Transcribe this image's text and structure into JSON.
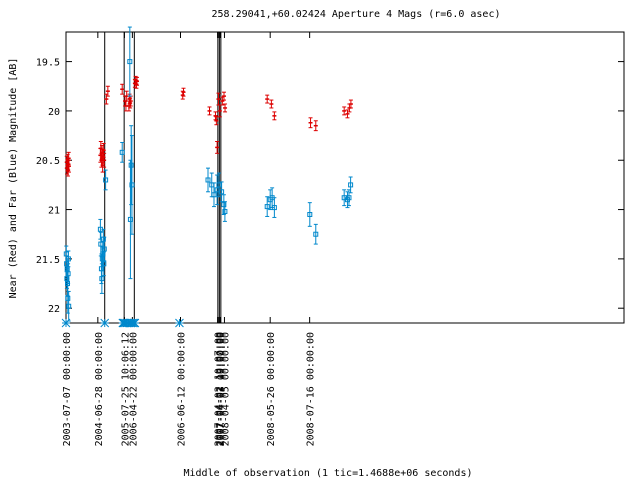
{
  "chart_data": {
    "type": "scatter",
    "title": "258.29041,+60.02424   Aperture 4 Mags (r=6.0 asec)",
    "xlabel": "Middle of observation (1 tic=1.4688e+06 seconds)",
    "ylabel": "Near (Red) and Far (Blue) Magnitude [AB]",
    "ylim": [
      22.15,
      19.2
    ],
    "y_inverted": true,
    "y_ticks": [
      "19.5",
      "20",
      "20.5",
      "21",
      "21.5",
      "22"
    ],
    "x_unit": "tic",
    "xlim": [
      0,
      373.3
    ],
    "x_ticks": [
      {
        "label": "2003-07-07 00:00:00",
        "x": 0.0
      },
      {
        "label": "2004-06-28 00:00:00",
        "x": 21.3
      },
      {
        "label": "2005-07-25 10:06:12",
        "x": 39.1
      },
      {
        "label": "2006-04-22 00:00:00",
        "x": 44.4
      },
      {
        "label": "2006-06-12 00:00:00",
        "x": 76.6
      },
      {
        "label": "2007-04-02 10:07:00",
        "x": 101.4
      },
      {
        "label": "2007-04-02 19:00:00",
        "x": 102.3
      },
      {
        "label": "2007-04-03 00:00:00",
        "x": 103.1
      },
      {
        "label": "2008-04-05 00:00:00",
        "x": 106.0
      },
      {
        "label": "2008-05-26 00:00:00",
        "x": 136.6
      },
      {
        "label": "2008-07-16 00:00:00",
        "x": 163.0
      }
    ],
    "vertical_lines_x": [
      25.9,
      38.9,
      45.7,
      101.6,
      102.6,
      103.6
    ],
    "series": [
      {
        "name": "Near (Red)",
        "color": "#dd0000",
        "marker": "bar-errorbar",
        "points": [
          {
            "x": 0.5,
            "y": 20.52,
            "err": 0.06
          },
          {
            "x": 0.7,
            "y": 20.58,
            "err": 0.06
          },
          {
            "x": 0.9,
            "y": 20.55,
            "err": 0.06
          },
          {
            "x": 1.1,
            "y": 20.5,
            "err": 0.06
          },
          {
            "x": 1.3,
            "y": 20.6,
            "err": 0.06
          },
          {
            "x": 1.5,
            "y": 20.54,
            "err": 0.06
          },
          {
            "x": 1.8,
            "y": 20.48,
            "err": 0.06
          },
          {
            "x": 2.0,
            "y": 20.56,
            "err": 0.06
          },
          {
            "x": 23.0,
            "y": 20.45,
            "err": 0.07
          },
          {
            "x": 23.3,
            "y": 20.38,
            "err": 0.07
          },
          {
            "x": 23.7,
            "y": 20.5,
            "err": 0.07
          },
          {
            "x": 24.1,
            "y": 20.42,
            "err": 0.07
          },
          {
            "x": 24.5,
            "y": 20.55,
            "err": 0.07
          },
          {
            "x": 24.8,
            "y": 20.46,
            "err": 0.07
          },
          {
            "x": 25.2,
            "y": 20.4,
            "err": 0.07
          },
          {
            "x": 25.5,
            "y": 20.5,
            "err": 0.07
          },
          {
            "x": 27.0,
            "y": 19.88,
            "err": 0.05
          },
          {
            "x": 28.0,
            "y": 19.8,
            "err": 0.05
          },
          {
            "x": 37.6,
            "y": 19.78,
            "err": 0.05
          },
          {
            "x": 39.5,
            "y": 19.9,
            "err": 0.05
          },
          {
            "x": 40.1,
            "y": 19.95,
            "err": 0.05
          },
          {
            "x": 40.6,
            "y": 19.85,
            "err": 0.05
          },
          {
            "x": 42.1,
            "y": 19.95,
            "err": 0.05
          },
          {
            "x": 42.5,
            "y": 19.88,
            "err": 0.05
          },
          {
            "x": 42.9,
            "y": 19.92,
            "err": 0.05
          },
          {
            "x": 43.3,
            "y": 19.9,
            "err": 0.05
          },
          {
            "x": 46.1,
            "y": 19.72,
            "err": 0.04
          },
          {
            "x": 46.6,
            "y": 19.69,
            "err": 0.04
          },
          {
            "x": 47.1,
            "y": 19.73,
            "err": 0.04
          },
          {
            "x": 47.5,
            "y": 19.7,
            "err": 0.04
          },
          {
            "x": 78.1,
            "y": 19.84,
            "err": 0.04
          },
          {
            "x": 78.6,
            "y": 19.81,
            "err": 0.04
          },
          {
            "x": 96.0,
            "y": 20.0,
            "err": 0.04
          },
          {
            "x": 100.0,
            "y": 20.05,
            "err": 0.04
          },
          {
            "x": 100.6,
            "y": 20.1,
            "err": 0.04
          },
          {
            "x": 101.1,
            "y": 20.37,
            "err": 0.06
          },
          {
            "x": 102.0,
            "y": 19.88,
            "err": 0.06
          },
          {
            "x": 102.9,
            "y": 20.0,
            "err": 0.06
          },
          {
            "x": 104.6,
            "y": 19.9,
            "err": 0.04
          },
          {
            "x": 105.7,
            "y": 19.85,
            "err": 0.04
          },
          {
            "x": 106.4,
            "y": 19.97,
            "err": 0.04
          },
          {
            "x": 134.6,
            "y": 19.88,
            "err": 0.04
          },
          {
            "x": 137.4,
            "y": 19.93,
            "err": 0.04
          },
          {
            "x": 139.4,
            "y": 20.05,
            "err": 0.04
          },
          {
            "x": 163.6,
            "y": 20.12,
            "err": 0.05
          },
          {
            "x": 167.1,
            "y": 20.15,
            "err": 0.05
          },
          {
            "x": 186.1,
            "y": 20.0,
            "err": 0.04
          },
          {
            "x": 188.3,
            "y": 20.03,
            "err": 0.04
          },
          {
            "x": 189.6,
            "y": 19.97,
            "err": 0.04
          },
          {
            "x": 190.6,
            "y": 19.93,
            "err": 0.04
          }
        ]
      },
      {
        "name": "Far (Blue)",
        "color": "#0088cc",
        "marker": "square-errorbar",
        "points": [
          {
            "x": 0.2,
            "y": 21.45,
            "err": 0.08
          },
          {
            "x": 0.4,
            "y": 21.55,
            "err": 0.08
          },
          {
            "x": 0.6,
            "y": 21.7,
            "err": 0.1
          },
          {
            "x": 0.8,
            "y": 21.6,
            "err": 0.1
          },
          {
            "x": 1.0,
            "y": 21.75,
            "err": 0.12
          },
          {
            "x": 1.2,
            "y": 21.9,
            "err": 0.15
          },
          {
            "x": 1.4,
            "y": 21.65,
            "err": 0.1
          },
          {
            "x": 1.6,
            "y": 21.5,
            "err": 0.08
          },
          {
            "x": 1.8,
            "y": 21.98,
            "err": 0.15
          },
          {
            "x": 23.0,
            "y": 21.2,
            "err": 0.1
          },
          {
            "x": 23.3,
            "y": 21.35,
            "err": 0.12
          },
          {
            "x": 23.7,
            "y": 21.6,
            "err": 0.15
          },
          {
            "x": 24.0,
            "y": 21.7,
            "err": 0.15
          },
          {
            "x": 24.3,
            "y": 21.5,
            "err": 0.12
          },
          {
            "x": 24.7,
            "y": 21.45,
            "err": 0.12
          },
          {
            "x": 25.0,
            "y": 21.3,
            "err": 0.1
          },
          {
            "x": 25.3,
            "y": 21.55,
            "err": 0.12
          },
          {
            "x": 25.6,
            "y": 21.4,
            "err": 0.12
          },
          {
            "x": 26.5,
            "y": 20.7,
            "err": 0.1
          },
          {
            "x": 37.6,
            "y": 20.42,
            "err": 0.1
          },
          {
            "x": 42.7,
            "y": 19.5,
            "err": 0.35
          },
          {
            "x": 43.6,
            "y": 20.55,
            "err": 0.4
          },
          {
            "x": 44.1,
            "y": 20.75,
            "err": 0.5
          },
          {
            "x": 43.1,
            "y": 21.1,
            "err": 0.6
          },
          {
            "x": 95.0,
            "y": 20.7,
            "err": 0.12
          },
          {
            "x": 97.5,
            "y": 20.75,
            "err": 0.12
          },
          {
            "x": 99.0,
            "y": 20.85,
            "err": 0.12
          },
          {
            "x": 101.1,
            "y": 20.8,
            "err": 0.15
          },
          {
            "x": 102.3,
            "y": 20.75,
            "err": 0.12
          },
          {
            "x": 104.1,
            "y": 20.82,
            "err": 0.1
          },
          {
            "x": 105.6,
            "y": 20.95,
            "err": 0.1
          },
          {
            "x": 106.3,
            "y": 21.02,
            "err": 0.1
          },
          {
            "x": 134.6,
            "y": 20.97,
            "err": 0.1
          },
          {
            "x": 136.6,
            "y": 20.9,
            "err": 0.1
          },
          {
            "x": 137.9,
            "y": 20.88,
            "err": 0.1
          },
          {
            "x": 139.4,
            "y": 20.98,
            "err": 0.1
          },
          {
            "x": 163.1,
            "y": 21.05,
            "err": 0.12
          },
          {
            "x": 167.1,
            "y": 21.25,
            "err": 0.1
          },
          {
            "x": 186.1,
            "y": 20.88,
            "err": 0.08
          },
          {
            "x": 188.3,
            "y": 20.9,
            "err": 0.08
          },
          {
            "x": 189.3,
            "y": 20.88,
            "err": 0.08
          },
          {
            "x": 190.4,
            "y": 20.75,
            "err": 0.08
          }
        ],
        "limits_at_bottom_x": [
          0.0,
          25.9,
          38.0,
          38.6,
          39.3,
          40.6,
          42.1,
          43.1,
          43.6,
          44.6,
          45.6,
          46.1,
          75.9
        ]
      }
    ]
  }
}
